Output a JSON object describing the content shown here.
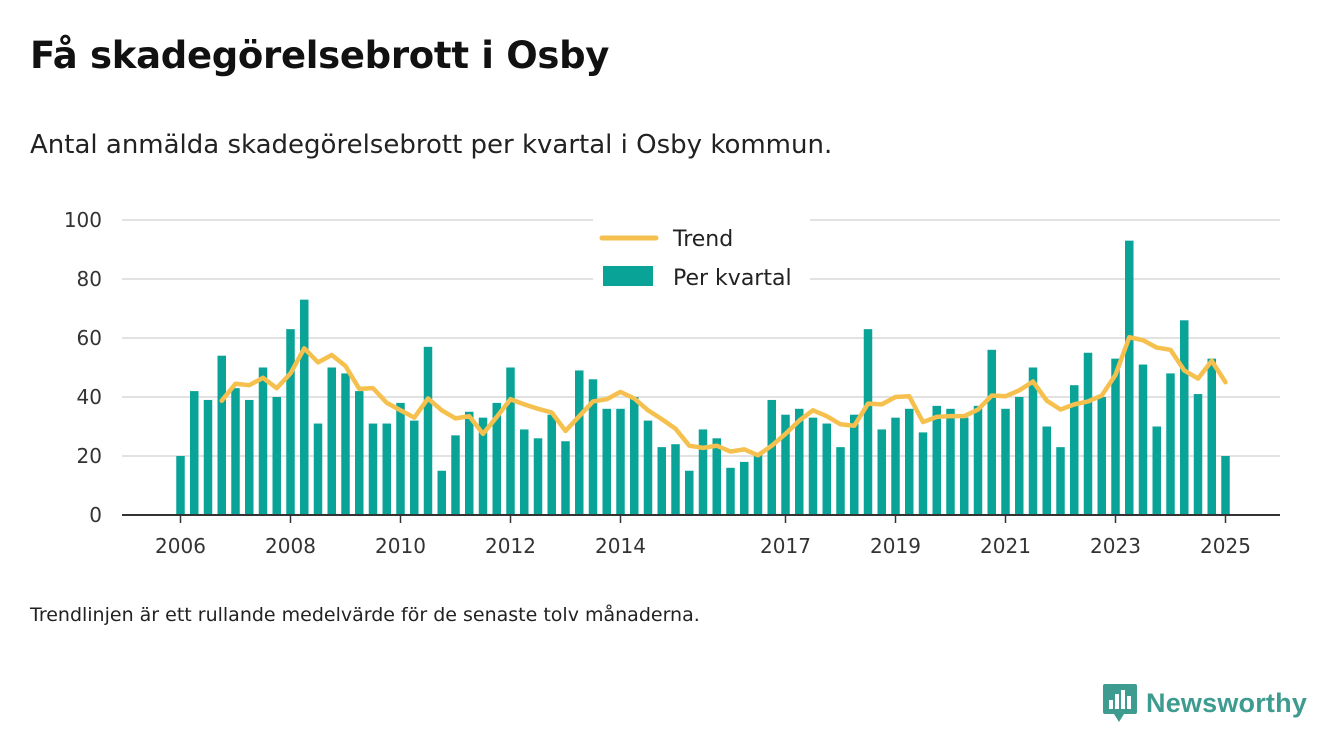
{
  "title": "Få skadegörelsebrott i Osby",
  "subtitle": "Antal anmälda skadegörelsebrott per kvartal i Osby kommun.",
  "footnote": "Trendlinjen är ett rullande medelvärde för de senaste tolv månaderna.",
  "brand": {
    "name": "Newsworthy",
    "icon": "newsworthy-logo-icon",
    "color": "#3e9b8f"
  },
  "colors": {
    "bars": "#0aa397",
    "trend": "#f6c04e",
    "grid": "#d9d9d9",
    "axis": "#333333"
  },
  "chart_data": {
    "type": "bar",
    "x_start": "2006-Q1",
    "ylim": [
      0,
      100
    ],
    "yticks": [
      "0",
      "20",
      "40",
      "60",
      "80",
      "100"
    ],
    "xticks": [
      {
        "label": "2006",
        "index": 0
      },
      {
        "label": "2008",
        "index": 8
      },
      {
        "label": "2010",
        "index": 16
      },
      {
        "label": "2012",
        "index": 24
      },
      {
        "label": "2014",
        "index": 32
      },
      {
        "label": "2017",
        "index": 44
      },
      {
        "label": "2019",
        "index": 52
      },
      {
        "label": "2021",
        "index": 60
      },
      {
        "label": "2023",
        "index": 68
      },
      {
        "label": "2025",
        "index": 76
      }
    ],
    "legend": {
      "position": "top-center",
      "entries": [
        "Trend",
        "Per kvartal"
      ]
    },
    "grid": true,
    "series": [
      {
        "name": "Per kvartal",
        "type": "bar",
        "values": [
          20,
          42,
          39,
          54,
          43,
          39,
          50,
          40,
          63,
          73,
          31,
          50,
          48,
          42,
          31,
          31,
          38,
          32,
          57,
          15,
          27,
          35,
          33,
          38,
          50,
          29,
          26,
          34,
          25,
          49,
          46,
          36,
          36,
          40,
          32,
          23,
          24,
          15,
          29,
          26,
          16,
          18,
          21,
          39,
          34,
          36,
          33,
          31,
          23,
          34,
          63,
          29,
          33,
          36,
          28,
          37,
          36,
          33,
          37,
          56,
          36,
          40,
          50,
          30,
          23,
          44,
          55,
          40,
          53,
          93,
          51,
          30,
          48,
          66,
          41,
          53,
          20
        ]
      },
      {
        "name": "Trend",
        "type": "line",
        "start_index": 3,
        "values": [
          38.75,
          44.5,
          44,
          46.5,
          43,
          48,
          56.5,
          51.75,
          54.25,
          50.5,
          42.75,
          43,
          38,
          35.5,
          33,
          39.5,
          35.5,
          32.75,
          33.5,
          27.5,
          33.25,
          39.25,
          37.5,
          36,
          34.75,
          28.5,
          33.5,
          38.5,
          39.25,
          41.75,
          39.5,
          35.5,
          32.5,
          29.25,
          23.5,
          22.75,
          23.5,
          21.5,
          22.25,
          20.25,
          23.5,
          27.5,
          32,
          35.5,
          33.5,
          30.75,
          30.25,
          37.75,
          37.5,
          40,
          40.25,
          31.5,
          33.25,
          33.5,
          33.5,
          35.75,
          40.5,
          40.25,
          42.25,
          45.25,
          38.75,
          35.75,
          37.5,
          38.5,
          40.5,
          47.5,
          60.25,
          59.25,
          56.75,
          56,
          49,
          46.25,
          52.25,
          45
        ]
      }
    ]
  }
}
